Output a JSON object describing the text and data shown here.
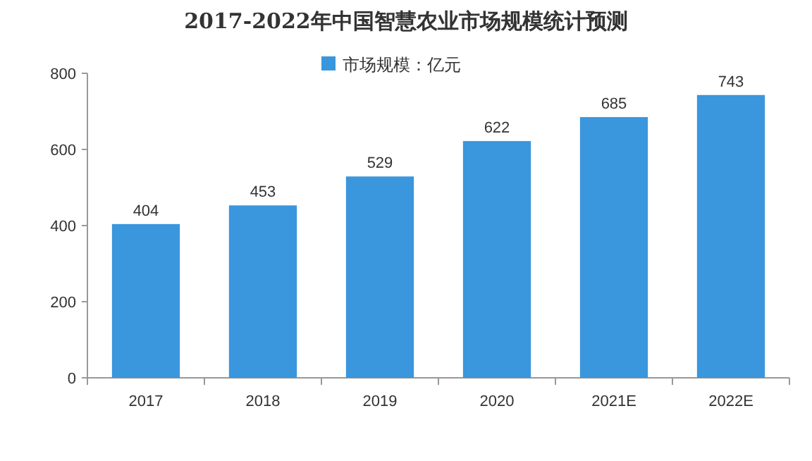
{
  "chart_data": {
    "type": "bar",
    "title": "2017-2022年中国智慧农业市场规模统计预测",
    "categories": [
      "2017",
      "2018",
      "2019",
      "2020",
      "2021E",
      "2022E"
    ],
    "series": [
      {
        "name": "市场规模：亿元",
        "color": "#3a96dd",
        "values": [
          404,
          453,
          529,
          622,
          685,
          743
        ]
      }
    ],
    "ylim": [
      0,
      800
    ],
    "yticks": [
      0,
      200,
      400,
      600,
      800
    ],
    "data_labels": true,
    "legend": "top",
    "grid": false
  }
}
